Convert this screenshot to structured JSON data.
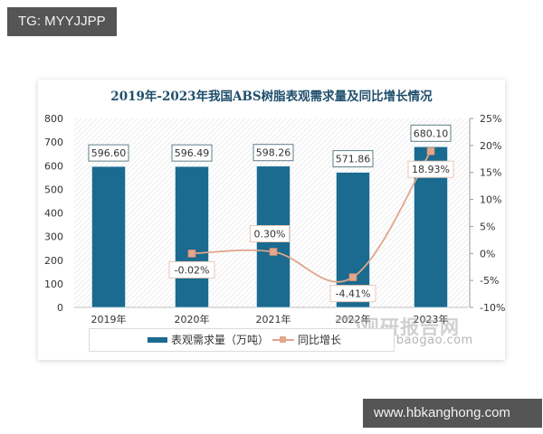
{
  "tags": {
    "top_left": "TG: MYYJJPP",
    "bottom_right": "www.hbkanghong.com"
  },
  "watermark": {
    "cn": "观研报告网",
    "en": "chinabaogao.com"
  },
  "chart_data": {
    "type": "bar+line",
    "title": "2019年-2023年我国ABS树脂表观需求量及同比增长情况",
    "categories": [
      "2019年",
      "2020年",
      "2021年",
      "2022年",
      "2023年"
    ],
    "series": [
      {
        "name": "表观需求量（万吨）",
        "type": "bar",
        "axis": "left",
        "color": "#1b6a8f",
        "values": [
          596.6,
          596.49,
          598.26,
          571.86,
          680.1
        ],
        "labels": [
          "596.60",
          "596.49",
          "598.26",
          "571.86",
          "680.10"
        ]
      },
      {
        "name": "同比增长",
        "type": "line",
        "axis": "right",
        "color": "#e0a58a",
        "values": [
          null,
          -0.02,
          0.3,
          -4.41,
          18.93
        ],
        "labels": [
          "",
          "-0.02%",
          "0.30%",
          "-4.41%",
          "18.93%"
        ]
      }
    ],
    "left_axis": {
      "ylim": [
        0,
        800
      ],
      "ticks": [
        "0",
        "100",
        "200",
        "300",
        "400",
        "500",
        "600",
        "700",
        "800"
      ]
    },
    "right_axis": {
      "ylim": [
        -10,
        25
      ],
      "ticks": [
        "-10%",
        "-5%",
        "0%",
        "5%",
        "10%",
        "15%",
        "20%",
        "25%"
      ]
    },
    "legend": {
      "position": "bottom",
      "items": [
        "表观需求量（万吨）",
        "同比增长"
      ]
    },
    "grid": false
  }
}
